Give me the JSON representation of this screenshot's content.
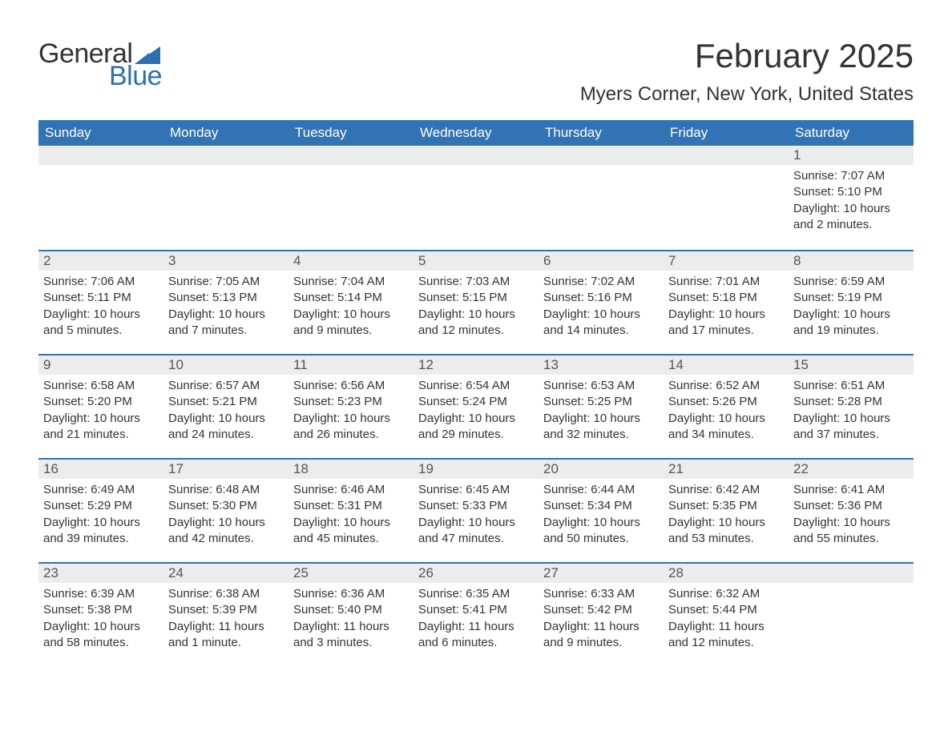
{
  "logo": {
    "text_general": "General",
    "text_blue": "Blue",
    "icon_color": "#2f6fb0"
  },
  "title": "February 2025",
  "location": "Myers Corner, New York, United States",
  "colors": {
    "header_bg": "#3173b3",
    "header_text": "#ffffff",
    "daynum_bg": "#ececec",
    "row_border": "#3173b3",
    "body_text": "#333333"
  },
  "days_of_week": [
    "Sunday",
    "Monday",
    "Tuesday",
    "Wednesday",
    "Thursday",
    "Friday",
    "Saturday"
  ],
  "weeks": [
    [
      {
        "blank": true
      },
      {
        "blank": true
      },
      {
        "blank": true
      },
      {
        "blank": true
      },
      {
        "blank": true
      },
      {
        "blank": true
      },
      {
        "day": "1",
        "sunrise": "Sunrise: 7:07 AM",
        "sunset": "Sunset: 5:10 PM",
        "daylight": "Daylight: 10 hours and 2 minutes."
      }
    ],
    [
      {
        "day": "2",
        "sunrise": "Sunrise: 7:06 AM",
        "sunset": "Sunset: 5:11 PM",
        "daylight": "Daylight: 10 hours and 5 minutes."
      },
      {
        "day": "3",
        "sunrise": "Sunrise: 7:05 AM",
        "sunset": "Sunset: 5:13 PM",
        "daylight": "Daylight: 10 hours and 7 minutes."
      },
      {
        "day": "4",
        "sunrise": "Sunrise: 7:04 AM",
        "sunset": "Sunset: 5:14 PM",
        "daylight": "Daylight: 10 hours and 9 minutes."
      },
      {
        "day": "5",
        "sunrise": "Sunrise: 7:03 AM",
        "sunset": "Sunset: 5:15 PM",
        "daylight": "Daylight: 10 hours and 12 minutes."
      },
      {
        "day": "6",
        "sunrise": "Sunrise: 7:02 AM",
        "sunset": "Sunset: 5:16 PM",
        "daylight": "Daylight: 10 hours and 14 minutes."
      },
      {
        "day": "7",
        "sunrise": "Sunrise: 7:01 AM",
        "sunset": "Sunset: 5:18 PM",
        "daylight": "Daylight: 10 hours and 17 minutes."
      },
      {
        "day": "8",
        "sunrise": "Sunrise: 6:59 AM",
        "sunset": "Sunset: 5:19 PM",
        "daylight": "Daylight: 10 hours and 19 minutes."
      }
    ],
    [
      {
        "day": "9",
        "sunrise": "Sunrise: 6:58 AM",
        "sunset": "Sunset: 5:20 PM",
        "daylight": "Daylight: 10 hours and 21 minutes."
      },
      {
        "day": "10",
        "sunrise": "Sunrise: 6:57 AM",
        "sunset": "Sunset: 5:21 PM",
        "daylight": "Daylight: 10 hours and 24 minutes."
      },
      {
        "day": "11",
        "sunrise": "Sunrise: 6:56 AM",
        "sunset": "Sunset: 5:23 PM",
        "daylight": "Daylight: 10 hours and 26 minutes."
      },
      {
        "day": "12",
        "sunrise": "Sunrise: 6:54 AM",
        "sunset": "Sunset: 5:24 PM",
        "daylight": "Daylight: 10 hours and 29 minutes."
      },
      {
        "day": "13",
        "sunrise": "Sunrise: 6:53 AM",
        "sunset": "Sunset: 5:25 PM",
        "daylight": "Daylight: 10 hours and 32 minutes."
      },
      {
        "day": "14",
        "sunrise": "Sunrise: 6:52 AM",
        "sunset": "Sunset: 5:26 PM",
        "daylight": "Daylight: 10 hours and 34 minutes."
      },
      {
        "day": "15",
        "sunrise": "Sunrise: 6:51 AM",
        "sunset": "Sunset: 5:28 PM",
        "daylight": "Daylight: 10 hours and 37 minutes."
      }
    ],
    [
      {
        "day": "16",
        "sunrise": "Sunrise: 6:49 AM",
        "sunset": "Sunset: 5:29 PM",
        "daylight": "Daylight: 10 hours and 39 minutes."
      },
      {
        "day": "17",
        "sunrise": "Sunrise: 6:48 AM",
        "sunset": "Sunset: 5:30 PM",
        "daylight": "Daylight: 10 hours and 42 minutes."
      },
      {
        "day": "18",
        "sunrise": "Sunrise: 6:46 AM",
        "sunset": "Sunset: 5:31 PM",
        "daylight": "Daylight: 10 hours and 45 minutes."
      },
      {
        "day": "19",
        "sunrise": "Sunrise: 6:45 AM",
        "sunset": "Sunset: 5:33 PM",
        "daylight": "Daylight: 10 hours and 47 minutes."
      },
      {
        "day": "20",
        "sunrise": "Sunrise: 6:44 AM",
        "sunset": "Sunset: 5:34 PM",
        "daylight": "Daylight: 10 hours and 50 minutes."
      },
      {
        "day": "21",
        "sunrise": "Sunrise: 6:42 AM",
        "sunset": "Sunset: 5:35 PM",
        "daylight": "Daylight: 10 hours and 53 minutes."
      },
      {
        "day": "22",
        "sunrise": "Sunrise: 6:41 AM",
        "sunset": "Sunset: 5:36 PM",
        "daylight": "Daylight: 10 hours and 55 minutes."
      }
    ],
    [
      {
        "day": "23",
        "sunrise": "Sunrise: 6:39 AM",
        "sunset": "Sunset: 5:38 PM",
        "daylight": "Daylight: 10 hours and 58 minutes."
      },
      {
        "day": "24",
        "sunrise": "Sunrise: 6:38 AM",
        "sunset": "Sunset: 5:39 PM",
        "daylight": "Daylight: 11 hours and 1 minute."
      },
      {
        "day": "25",
        "sunrise": "Sunrise: 6:36 AM",
        "sunset": "Sunset: 5:40 PM",
        "daylight": "Daylight: 11 hours and 3 minutes."
      },
      {
        "day": "26",
        "sunrise": "Sunrise: 6:35 AM",
        "sunset": "Sunset: 5:41 PM",
        "daylight": "Daylight: 11 hours and 6 minutes."
      },
      {
        "day": "27",
        "sunrise": "Sunrise: 6:33 AM",
        "sunset": "Sunset: 5:42 PM",
        "daylight": "Daylight: 11 hours and 9 minutes."
      },
      {
        "day": "28",
        "sunrise": "Sunrise: 6:32 AM",
        "sunset": "Sunset: 5:44 PM",
        "daylight": "Daylight: 11 hours and 12 minutes."
      },
      {
        "blank": true
      }
    ]
  ]
}
